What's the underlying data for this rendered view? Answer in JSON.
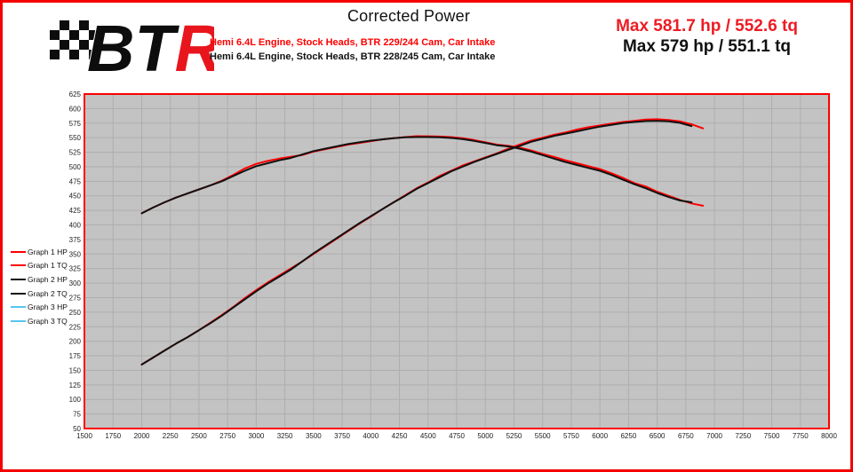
{
  "header": {
    "title": "Corrected Power",
    "subtitle_red": "Hemi 6.4L Engine, Stock Heads, BTR 229/244 Cam, Car Intake",
    "subtitle_black": "Hemi 6.4L Engine, Stock Heads, BTR 228/245 Cam, Car Intake",
    "max_red": "Max 581.7 hp / 552.6 tq",
    "max_black": "Max 579 hp / 551.1 tq"
  },
  "logo": {
    "text_bt": "BT",
    "text_r": "R",
    "black": "#0d0d0d",
    "red": "#e8151d"
  },
  "colors": {
    "page_border": "#f40000",
    "plot_bg": "#c3c3c3",
    "grid": "#aeaeae",
    "frame": "#fe0000",
    "graph1": "#fe0000",
    "graph2": "#111111",
    "graph3": "#56c5ef"
  },
  "chart_data": {
    "type": "line",
    "title": "Corrected Power",
    "xlabel": "",
    "ylabel": "",
    "grid": true,
    "legend_position": "left",
    "x_axis": {
      "min": 1500,
      "max": 8000,
      "tick_step": 250
    },
    "y_axis": {
      "min": 50,
      "max": 625,
      "tick_step": 25
    },
    "series": [
      {
        "name": "Graph 1 HP",
        "color": "#fe0000",
        "x_start": 2000,
        "x_step": 100,
        "values": [
          160,
          172,
          184,
          196,
          207,
          219,
          232,
          245,
          259,
          274,
          288,
          301,
          313,
          325,
          337,
          350,
          363,
          376,
          389,
          402,
          414,
          427,
          439,
          451,
          463,
          473,
          484,
          493,
          502,
          509,
          516,
          523,
          531,
          538,
          545,
          550,
          555,
          559,
          564,
          568,
          571,
          574,
          577,
          579,
          581,
          581.7,
          580.5,
          578,
          573,
          566
        ]
      },
      {
        "name": "Graph 1 TQ",
        "color": "#fe0000",
        "x_start": 2000,
        "x_step": 100,
        "values": [
          420,
          430,
          439,
          447,
          454,
          461,
          468,
          476,
          486,
          497,
          505,
          510,
          514,
          517,
          520,
          526,
          530,
          534,
          538,
          541,
          544,
          547,
          549,
          551,
          552.6,
          552.4,
          552,
          551,
          549,
          546,
          542,
          538,
          536,
          533,
          528,
          522,
          517,
          511,
          506,
          501,
          496,
          489,
          481,
          472,
          466,
          457,
          450,
          443,
          437,
          433
        ]
      },
      {
        "name": "Graph 2 HP",
        "color": "#111111",
        "x_start": 2000,
        "x_step": 100,
        "values": [
          160,
          172,
          184,
          196,
          207,
          219,
          231,
          244,
          258,
          272,
          286,
          299,
          311,
          323,
          337,
          351,
          364,
          377,
          390,
          403,
          415,
          427,
          439,
          450,
          462,
          472,
          482,
          492,
          500,
          508,
          515,
          522,
          529,
          536,
          543,
          548,
          553,
          557,
          561,
          565,
          569,
          572,
          575,
          577,
          578.5,
          579,
          578,
          575.5,
          570
        ]
      },
      {
        "name": "Graph 2 TQ",
        "color": "#111111",
        "x_start": 2000,
        "x_step": 100,
        "values": [
          420,
          430,
          439,
          447,
          454,
          461,
          468,
          475,
          484,
          493,
          501,
          506,
          511,
          515,
          521,
          527,
          531,
          535,
          539,
          542,
          545,
          547,
          549,
          550.5,
          551.1,
          551,
          550.5,
          549.5,
          547.5,
          544.5,
          541,
          537,
          535,
          531,
          526,
          520,
          514,
          508,
          503,
          498,
          493,
          486,
          478,
          470,
          463,
          455,
          448,
          442,
          439
        ]
      },
      {
        "name": "Graph 3 HP",
        "color": "#56c5ef",
        "x_start": 2000,
        "x_step": 100,
        "values": []
      },
      {
        "name": "Graph 3 TQ",
        "color": "#56c5ef",
        "x_start": 2000,
        "x_step": 100,
        "values": []
      }
    ]
  }
}
